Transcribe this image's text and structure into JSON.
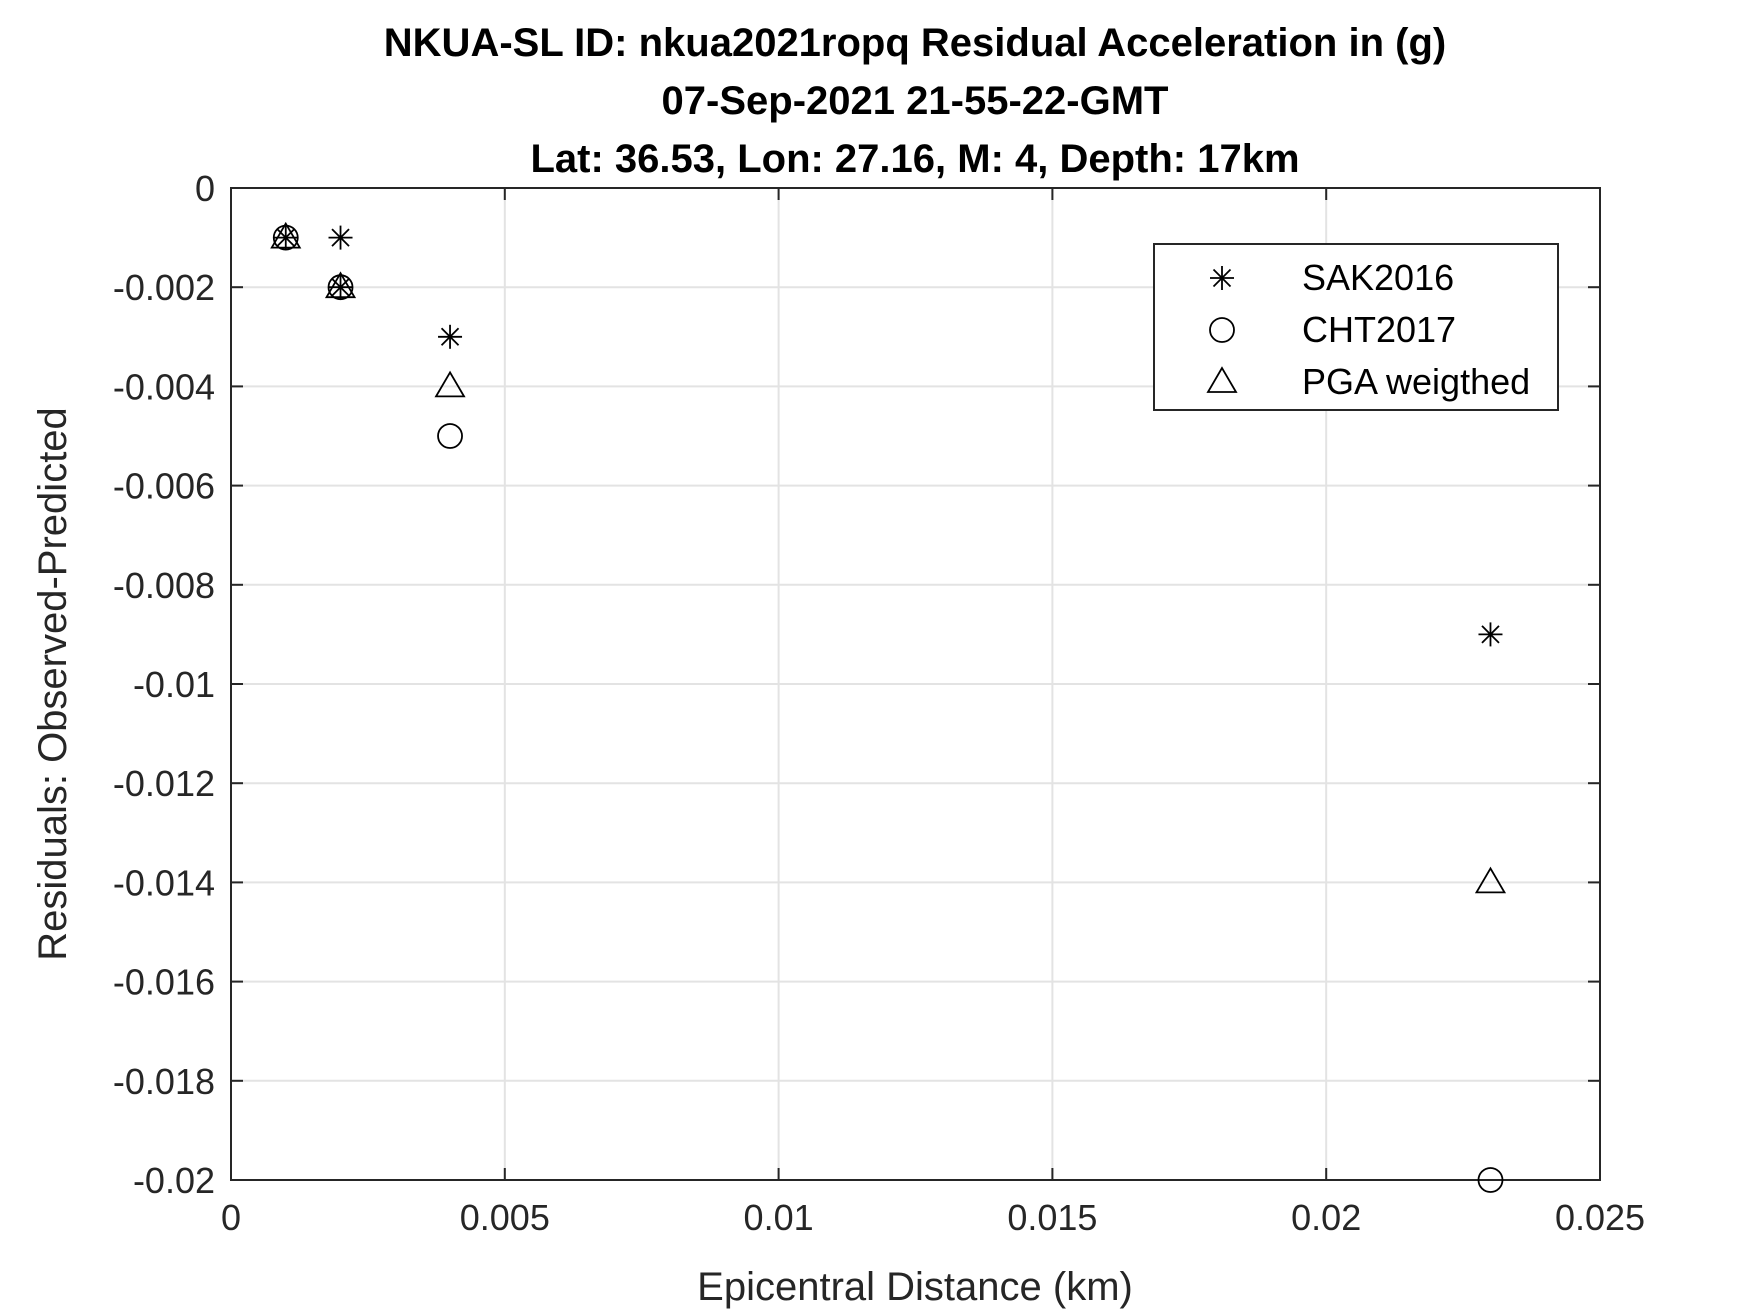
{
  "chart_data": {
    "type": "scatter",
    "title": [
      "NKUA-SL ID: nkua2021ropq Residual Acceleration in (g)",
      "07-Sep-2021 21-55-22-GMT",
      "Lat: 36.53, Lon: 27.16, M: 4, Depth: 17km"
    ],
    "xlabel": "Epicentral Distance (km)",
    "ylabel": "Residuals: Observed-Predicted",
    "xlim": [
      0,
      0.025
    ],
    "ylim": [
      -0.02,
      0
    ],
    "xticks": [
      0,
      0.005,
      0.01,
      0.015,
      0.02,
      0.025
    ],
    "xtick_labels": [
      "0",
      "0.005",
      "0.01",
      "0.015",
      "0.02",
      "0.025"
    ],
    "yticks": [
      0,
      -0.002,
      -0.004,
      -0.006,
      -0.008,
      -0.01,
      -0.012,
      -0.014,
      -0.016,
      -0.018,
      -0.02
    ],
    "ytick_labels": [
      "0",
      "-0.002",
      "-0.004",
      "-0.006",
      "-0.008",
      "-0.01",
      "-0.012",
      "-0.014",
      "-0.016",
      "-0.018",
      "-0.02"
    ],
    "grid": true,
    "legend_position": "top-right",
    "series": [
      {
        "name": "SAK2016",
        "marker": "asterisk",
        "color": "#000000",
        "x": [
          0.001,
          0.002,
          0.002,
          0.004,
          0.023
        ],
        "y": [
          -0.001,
          -0.001,
          -0.002,
          -0.003,
          -0.009
        ]
      },
      {
        "name": "CHT2017",
        "marker": "circle",
        "color": "#000000",
        "x": [
          0.001,
          0.002,
          0.004,
          0.023
        ],
        "y": [
          -0.001,
          -0.002,
          -0.005,
          -0.02
        ]
      },
      {
        "name": "PGA weigthed",
        "marker": "triangle",
        "color": "#000000",
        "x": [
          0.001,
          0.002,
          0.004,
          0.023
        ],
        "y": [
          -0.001,
          -0.002,
          -0.004,
          -0.014
        ]
      }
    ]
  }
}
